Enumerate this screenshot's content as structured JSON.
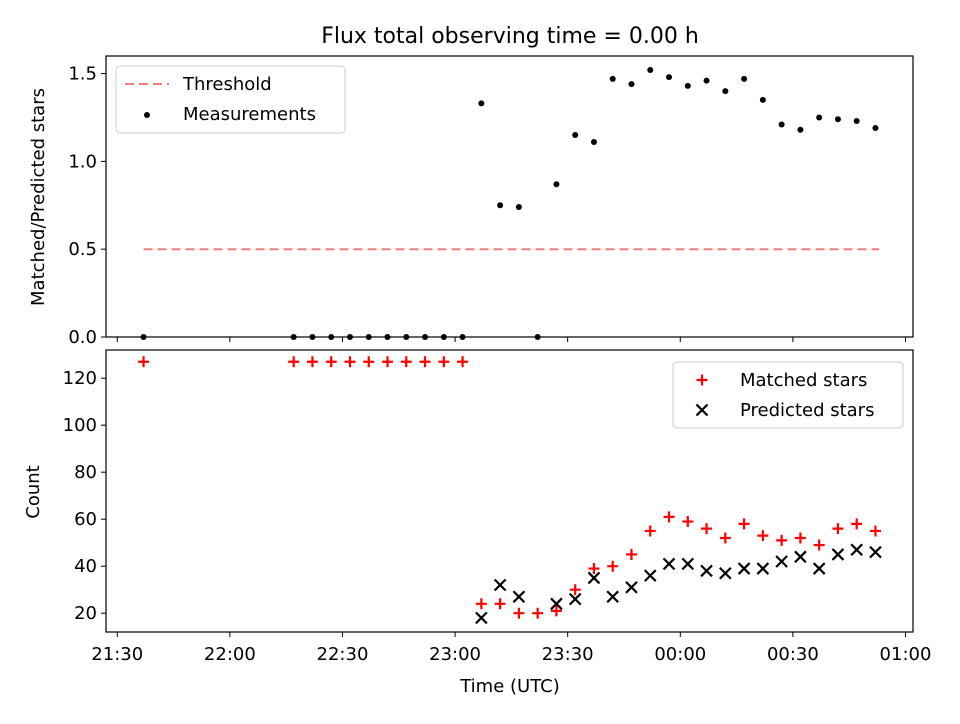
{
  "chart_data": [
    {
      "type": "scatter",
      "title": "Flux total observing time = 0.00 h",
      "xlabel": "",
      "ylabel": "Matched/Predicted stars",
      "xlim": [
        "21:27",
        "01:02"
      ],
      "ylim": [
        0,
        1.6
      ],
      "yticks": [
        0.0,
        0.5,
        1.0,
        1.5
      ],
      "ytick_labels": [
        "0.0",
        "0.5",
        "1.0",
        "1.5"
      ],
      "legend_position": "top-left",
      "threshold": {
        "name": "Threshold",
        "value": 0.5,
        "color": "#f08080",
        "style": "dashed",
        "x_start": "21:37",
        "x_end": "00:53"
      },
      "series": [
        {
          "name": "Measurements",
          "color": "#000000",
          "marker": "dot",
          "points": [
            [
              "21:37",
              0.0
            ],
            [
              "22:17",
              0.0
            ],
            [
              "22:22",
              0.0
            ],
            [
              "22:27",
              0.0
            ],
            [
              "22:32",
              0.0
            ],
            [
              "22:37",
              0.0
            ],
            [
              "22:42",
              0.0
            ],
            [
              "22:47",
              0.0
            ],
            [
              "22:52",
              0.0
            ],
            [
              "22:57",
              0.0
            ],
            [
              "23:02",
              0.0
            ],
            [
              "23:07",
              1.33
            ],
            [
              "23:12",
              0.75
            ],
            [
              "23:17",
              0.74
            ],
            [
              "23:22",
              0.0
            ],
            [
              "23:27",
              0.87
            ],
            [
              "23:32",
              1.15
            ],
            [
              "23:37",
              1.11
            ],
            [
              "23:42",
              1.47
            ],
            [
              "23:47",
              1.44
            ],
            [
              "23:52",
              1.52
            ],
            [
              "23:57",
              1.48
            ],
            [
              "00:02",
              1.43
            ],
            [
              "00:07",
              1.46
            ],
            [
              "00:12",
              1.4
            ],
            [
              "00:17",
              1.47
            ],
            [
              "00:22",
              1.35
            ],
            [
              "00:27",
              1.21
            ],
            [
              "00:32",
              1.18
            ],
            [
              "00:37",
              1.25
            ],
            [
              "00:42",
              1.24
            ],
            [
              "00:47",
              1.23
            ],
            [
              "00:52",
              1.19
            ]
          ]
        }
      ]
    },
    {
      "type": "scatter",
      "title": "",
      "xlabel": "Time (UTC)",
      "ylabel": "Count",
      "xlim": [
        "21:27",
        "01:02"
      ],
      "ylim": [
        12,
        132
      ],
      "xticks": [
        "21:30",
        "22:00",
        "22:30",
        "23:00",
        "23:30",
        "00:00",
        "00:30",
        "01:00"
      ],
      "yticks": [
        20,
        40,
        60,
        80,
        100,
        120
      ],
      "ytick_labels": [
        "20",
        "40",
        "60",
        "80",
        "100",
        "120"
      ],
      "legend_position": "top-right",
      "series": [
        {
          "name": "Matched stars",
          "color": "#ff0000",
          "marker": "plus",
          "points": [
            [
              "21:37",
              127
            ],
            [
              "22:17",
              127
            ],
            [
              "22:22",
              127
            ],
            [
              "22:27",
              127
            ],
            [
              "22:32",
              127
            ],
            [
              "22:37",
              127
            ],
            [
              "22:42",
              127
            ],
            [
              "22:47",
              127
            ],
            [
              "22:52",
              127
            ],
            [
              "22:57",
              127
            ],
            [
              "23:02",
              127
            ],
            [
              "23:07",
              24
            ],
            [
              "23:12",
              24
            ],
            [
              "23:17",
              20
            ],
            [
              "23:22",
              20
            ],
            [
              "23:27",
              21
            ],
            [
              "23:32",
              30
            ],
            [
              "23:37",
              39
            ],
            [
              "23:42",
              40
            ],
            [
              "23:47",
              45
            ],
            [
              "23:52",
              55
            ],
            [
              "23:57",
              61
            ],
            [
              "00:02",
              59
            ],
            [
              "00:07",
              56
            ],
            [
              "00:12",
              52
            ],
            [
              "00:17",
              58
            ],
            [
              "00:22",
              53
            ],
            [
              "00:27",
              51
            ],
            [
              "00:32",
              52
            ],
            [
              "00:37",
              49
            ],
            [
              "00:42",
              56
            ],
            [
              "00:47",
              58
            ],
            [
              "00:52",
              55
            ]
          ]
        },
        {
          "name": "Predicted stars",
          "color": "#000000",
          "marker": "x",
          "points": [
            [
              "23:07",
              18
            ],
            [
              "23:12",
              32
            ],
            [
              "23:17",
              27
            ],
            [
              "23:27",
              24
            ],
            [
              "23:32",
              26
            ],
            [
              "23:37",
              35
            ],
            [
              "23:42",
              27
            ],
            [
              "23:47",
              31
            ],
            [
              "23:52",
              36
            ],
            [
              "23:57",
              41
            ],
            [
              "00:02",
              41
            ],
            [
              "00:07",
              38
            ],
            [
              "00:12",
              37
            ],
            [
              "00:17",
              39
            ],
            [
              "00:22",
              39
            ],
            [
              "00:27",
              42
            ],
            [
              "00:32",
              44
            ],
            [
              "00:37",
              39
            ],
            [
              "00:42",
              45
            ],
            [
              "00:47",
              47
            ],
            [
              "00:52",
              46
            ]
          ]
        }
      ]
    }
  ]
}
